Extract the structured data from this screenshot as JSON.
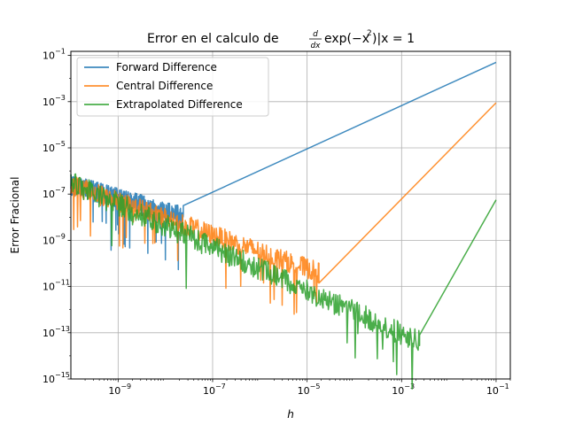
{
  "chart_data": {
    "type": "line",
    "title": "Error en el calculo de d/dx exp(−x²)|x = 1",
    "xlabel": "h",
    "ylabel": "Error Fracional",
    "x_scale": "log",
    "y_scale": "log",
    "xlim": [
      1e-10,
      0.2
    ],
    "ylim": [
      1e-15,
      0.15
    ],
    "grid": true,
    "legend_position": "top-left",
    "x_ticks": [
      {
        "exp": "−9",
        "value": 1e-09
      },
      {
        "exp": "−7",
        "value": 1e-07
      },
      {
        "exp": "−5",
        "value": 1e-05
      },
      {
        "exp": "−3",
        "value": 0.001
      },
      {
        "exp": "−1",
        "value": 0.1
      }
    ],
    "y_ticks": [
      {
        "exp": "−15",
        "value": 1e-15
      },
      {
        "exp": "−13",
        "value": 1e-13
      },
      {
        "exp": "−11",
        "value": 1e-11
      },
      {
        "exp": "−9",
        "value": 1e-09
      },
      {
        "exp": "−7",
        "value": 1e-07
      },
      {
        "exp": "−5",
        "value": 1e-05
      },
      {
        "exp": "−3",
        "value": 0.001
      },
      {
        "exp": "−1",
        "value": 0.1
      }
    ],
    "series": [
      {
        "name": "Forward Difference",
        "color": "#1f77b4",
        "trend": {
          "log_h": [
            -1,
            -7.62
          ],
          "log_err": [
            -1.3,
            -7.5
          ]
        },
        "noise": {
          "log_h": [
            -10,
            -7.62
          ],
          "log_err": [
            -6.6,
            -8.0
          ],
          "spread": 0.45
        }
      },
      {
        "name": "Central Difference",
        "color": "#ff7f0e",
        "trend": {
          "log_h": [
            -1,
            -4.75
          ],
          "log_err": [
            -3.05,
            -10.85
          ]
        },
        "noise": {
          "log_h": [
            -10,
            -4.75
          ],
          "log_err": [
            -6.6,
            -10.4
          ],
          "spread": 0.45
        }
      },
      {
        "name": "Extrapolated Difference",
        "color": "#2ca02c",
        "trend": {
          "log_h": [
            -1,
            -2.62
          ],
          "log_err": [
            -7.25,
            -13.1
          ]
        },
        "noise": {
          "log_h": [
            -10,
            -2.62
          ],
          "log_err": [
            -6.5,
            -13.4
          ],
          "spread": 0.5
        }
      }
    ]
  },
  "labels": {
    "title_prefix": "Error en el calculo de",
    "title_d": "d",
    "title_dx": "dx",
    "title_exp": "exp(−x",
    "title_sup": "2",
    "title_tail": ")|x = 1",
    "tick_base": "10"
  }
}
